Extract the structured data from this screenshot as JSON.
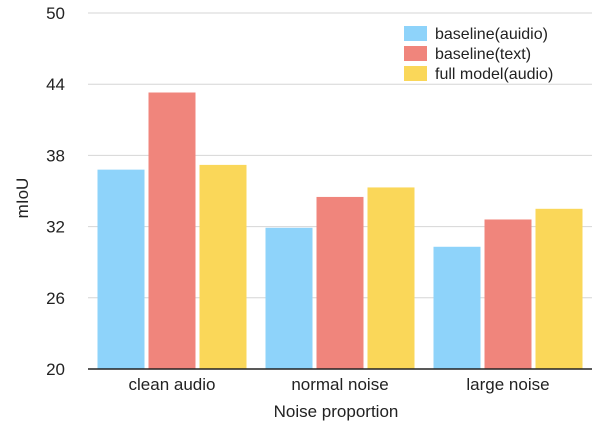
{
  "chart_data": {
    "type": "bar",
    "categories": [
      "clean audio",
      "normal noise",
      "large noise"
    ],
    "series": [
      {
        "name": "baseline(auidio)",
        "color": "#8ed3fa",
        "values": [
          36.8,
          31.9,
          30.3
        ]
      },
      {
        "name": "baseline(text)",
        "color": "#f0857c",
        "values": [
          43.3,
          34.5,
          32.6
        ]
      },
      {
        "name": "full model(audio)",
        "color": "#fad759",
        "values": [
          37.2,
          35.3,
          33.5
        ]
      }
    ],
    "xlabel": "Noise proportion",
    "ylabel": "mIoU",
    "ylim": [
      20,
      50
    ],
    "yticks": [
      "20",
      "26",
      "32",
      "38",
      "44",
      "50"
    ],
    "grid": true,
    "legend_position": "top-right"
  }
}
